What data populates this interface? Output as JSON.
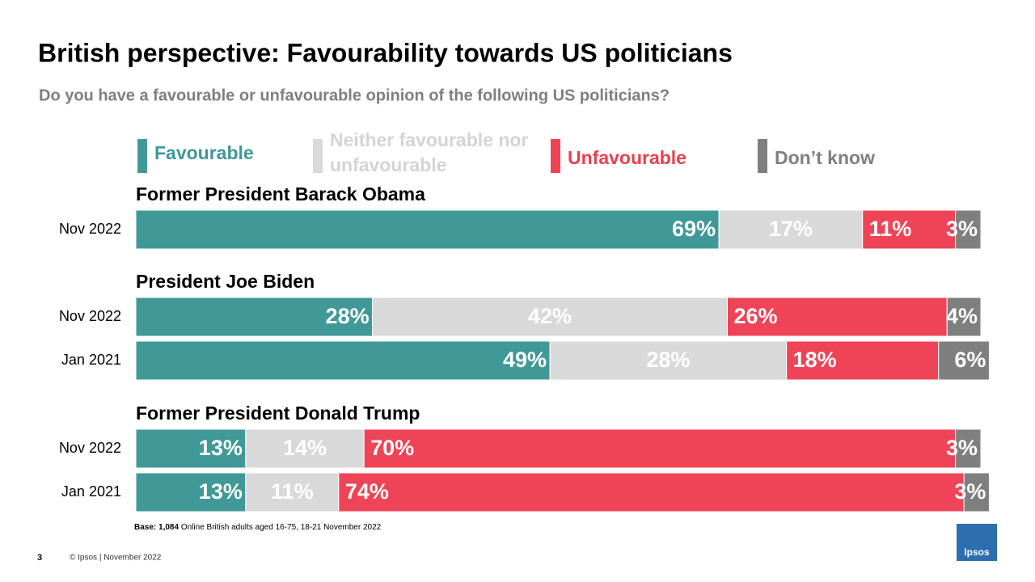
{
  "chart_data": {
    "type": "bar",
    "stacked": true,
    "orientation": "horizontal",
    "title": "British perspective: Favourability towards US politicians",
    "subtitle": "Do you have a favourable or unfavourable opinion of the following US politicians?",
    "group_labels": [
      "Former President Barack Obama",
      "President Joe Biden",
      null,
      "Former President Donald Trump",
      null
    ],
    "categories": [
      "Nov 2022",
      "Nov 2022",
      "Jan 2021",
      "Nov 2022",
      "Jan 2021"
    ],
    "xlim": [
      0,
      100
    ],
    "series": [
      {
        "name": "Favourable",
        "color": "#419997",
        "label_color": "#3e9896",
        "values": [
          69,
          28,
          49,
          13,
          13
        ],
        "value_labels": [
          "69%",
          "28%",
          "49%",
          "13%",
          "13%"
        ]
      },
      {
        "name": "Neither favourable nor unfavourable",
        "color": "#d9d9d9",
        "label_color": "#d4d4d4",
        "values": [
          17,
          42,
          28,
          14,
          11
        ],
        "value_labels": [
          "17%",
          "42%",
          "28%",
          "14%",
          "11%"
        ]
      },
      {
        "name": "Unfavourable",
        "color": "#ef4457",
        "label_color": "#e8404f",
        "values": [
          11,
          26,
          18,
          70,
          74
        ],
        "value_labels": [
          "11%",
          "26%",
          "18%",
          "70%",
          "74%"
        ]
      },
      {
        "name": "Don’t know",
        "color": "#7f7f7f",
        "label_color": "#7f7f7f",
        "values": [
          3,
          4,
          6,
          3,
          3
        ],
        "value_labels": [
          "3%",
          "4%",
          "6%",
          "3%",
          "3%"
        ]
      }
    ]
  },
  "footer": {
    "base_label": "Base:",
    "base_count": "1,084",
    "base_text": "Online British adults aged 16-75, 18-21 November 2022",
    "page_number": "3",
    "copyright": "© Ipsos | November 2022",
    "logo": "Ipsos"
  }
}
